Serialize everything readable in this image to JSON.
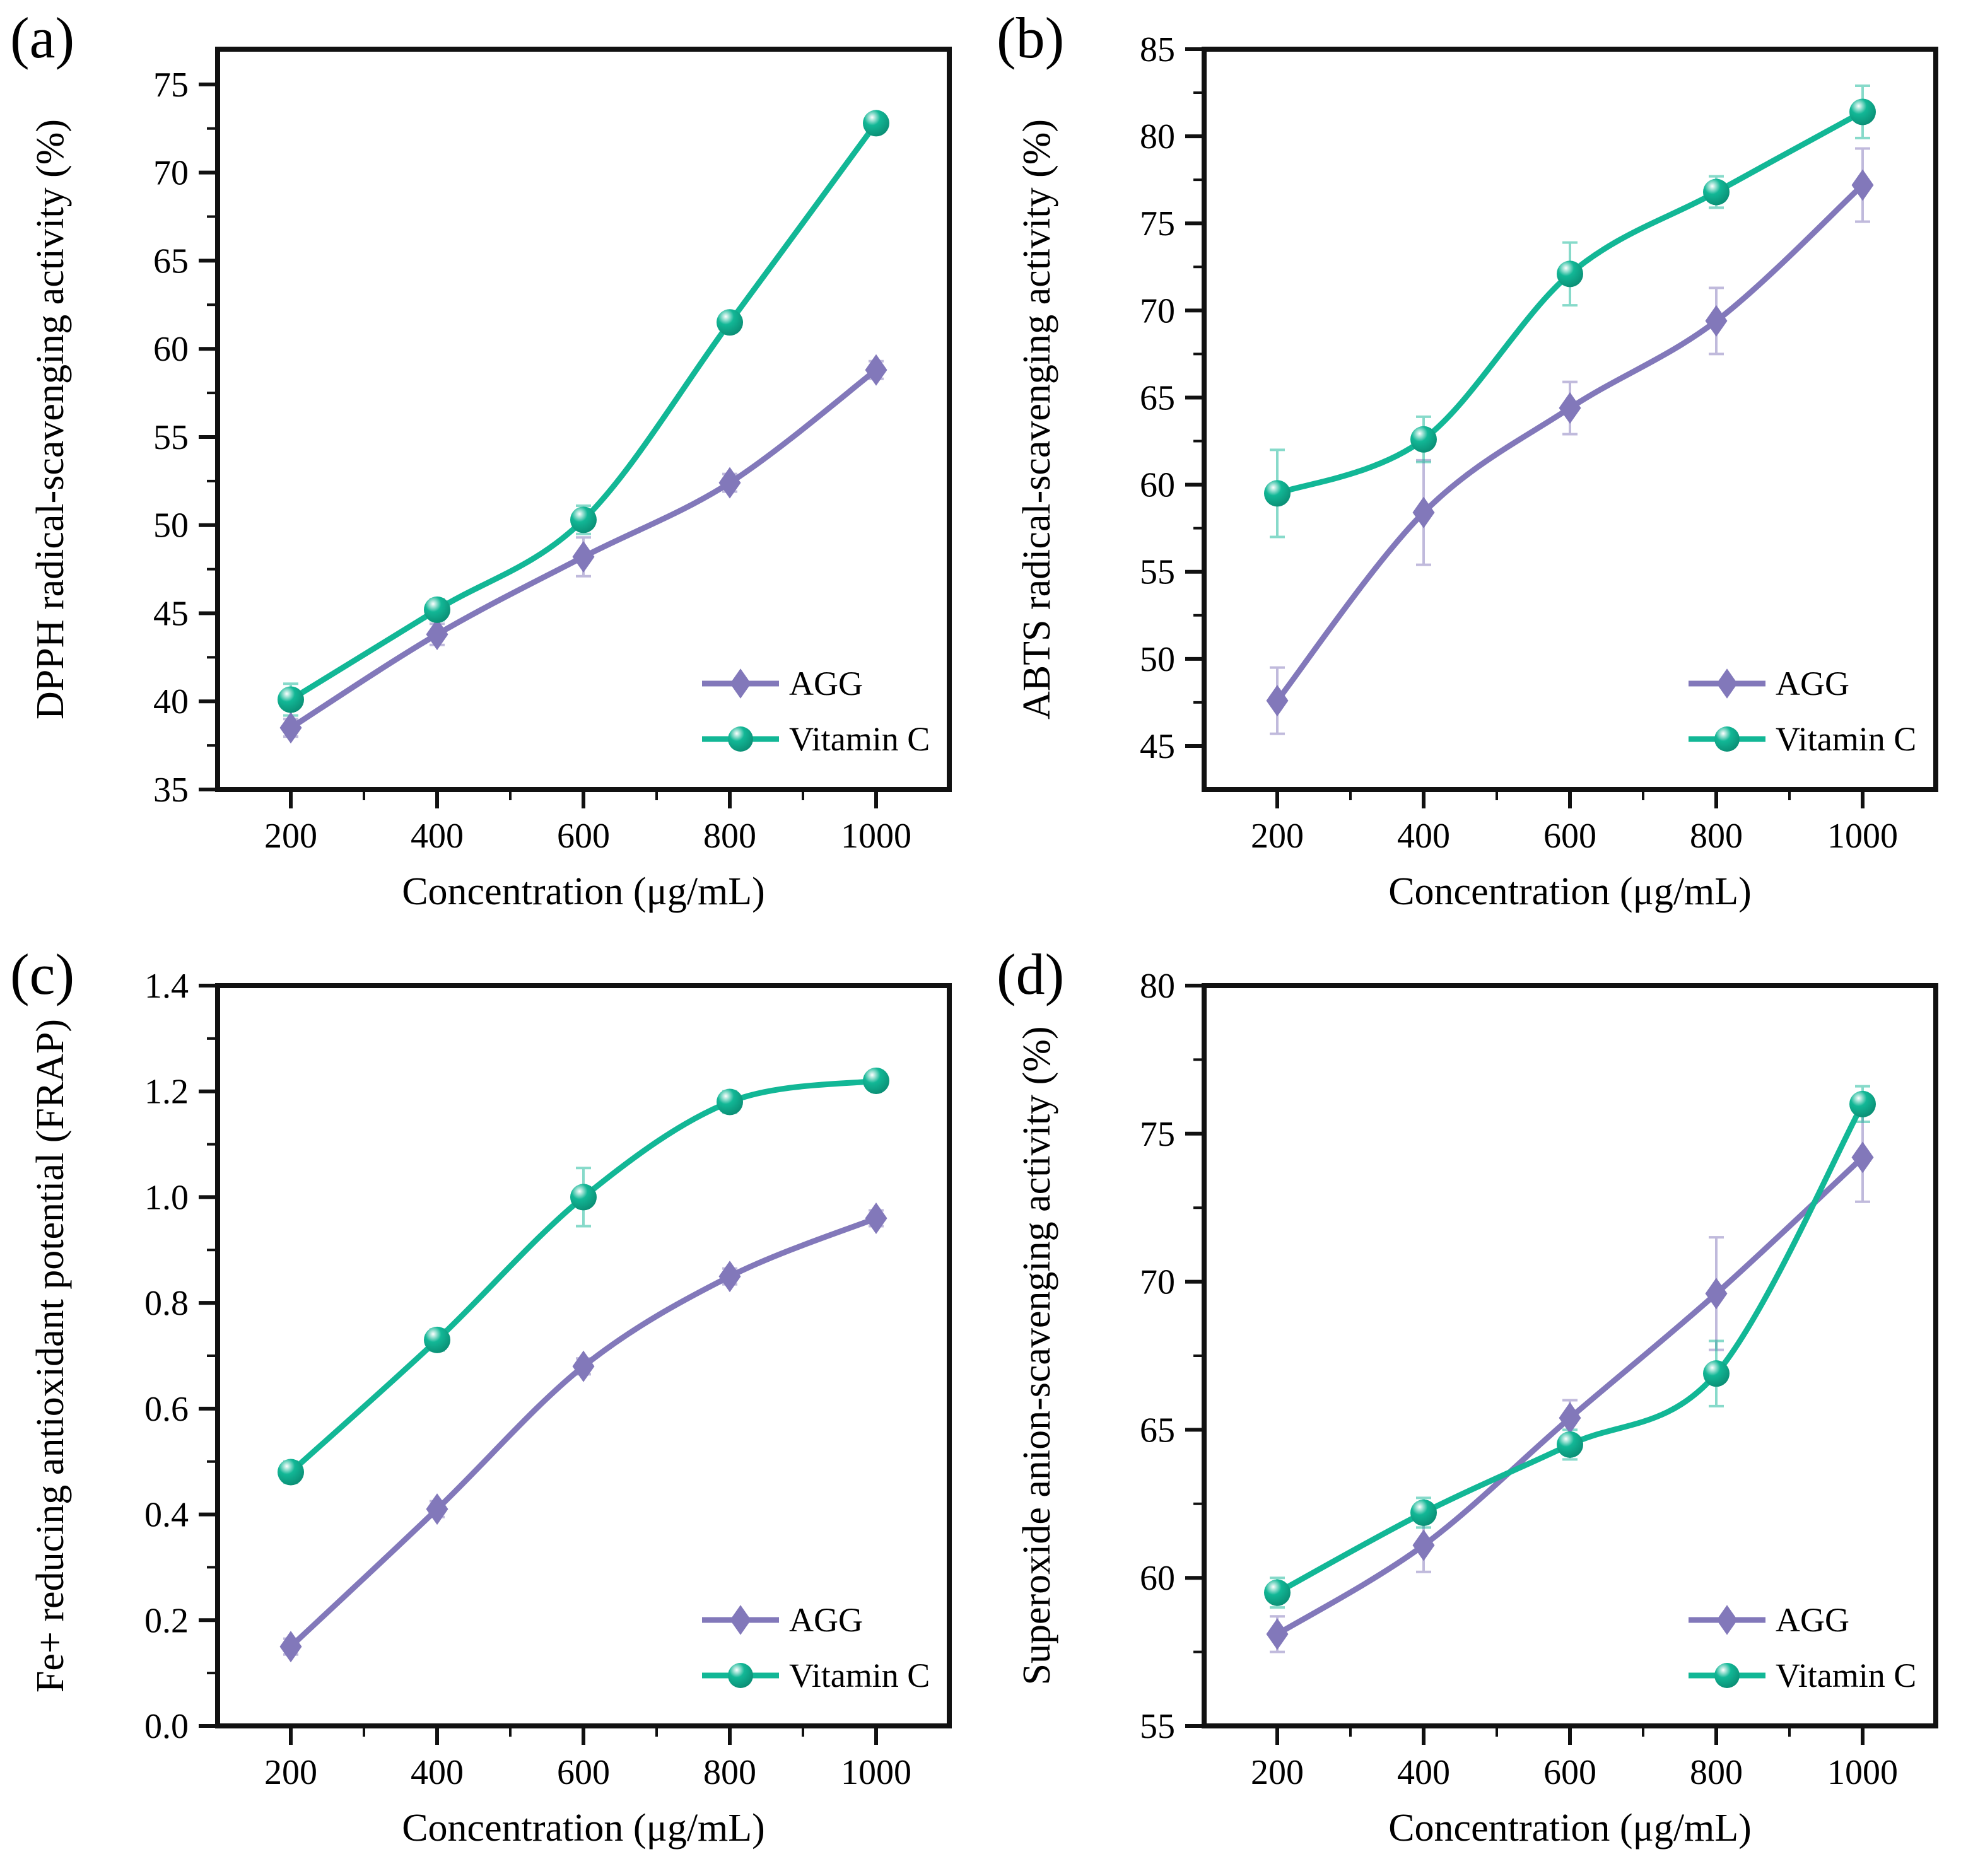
{
  "figure": {
    "background": "#ffffff",
    "axis_color": "#111111",
    "text_color": "#000000"
  },
  "legend": {
    "items": [
      "AGG",
      "Vitamin C"
    ],
    "position": "bottom-right"
  },
  "colors": {
    "agg_purple": "#8278BA",
    "vitamin_c_teal": "#12B796"
  },
  "chart_data": [
    {
      "id": "a",
      "letter": "(a)",
      "type": "line",
      "xlabel": "Concentration (μg/mL)",
      "ylabel": "DPPH radical-scavenging activity (%)",
      "x": [
        200,
        400,
        600,
        800,
        1000
      ],
      "xlim": [
        100,
        1100
      ],
      "ylim": [
        35,
        77
      ],
      "xticks": [
        200,
        400,
        600,
        800,
        1000
      ],
      "xminor": [
        300,
        500,
        700,
        900
      ],
      "yticks": [
        35,
        40,
        45,
        50,
        55,
        60,
        65,
        70,
        75
      ],
      "ylabels": [
        "35",
        "40",
        "45",
        "50",
        "55",
        "60",
        "65",
        "70",
        "75"
      ],
      "yminor": [
        37.5,
        42.5,
        47.5,
        52.5,
        57.5,
        62.5,
        67.5,
        72.5
      ],
      "grid": false,
      "legend_position": "bottom-right",
      "series": [
        {
          "name": "AGG",
          "marker": "diamond",
          "color": "#8278BA",
          "color_dark": "#675DA0",
          "values": [
            38.5,
            43.8,
            48.2,
            52.4,
            58.8
          ],
          "errors": [
            0.5,
            0.6,
            1.1,
            0.5,
            0.5
          ]
        },
        {
          "name": "Vitamin C",
          "marker": "sphere",
          "color": "#12B796",
          "color_dark": "#0A8A71",
          "values": [
            40.1,
            45.2,
            50.3,
            61.5,
            72.8
          ],
          "errors": [
            0.9,
            0.6,
            0.8,
            0.5,
            0.4
          ]
        }
      ]
    },
    {
      "id": "b",
      "letter": "(b)",
      "type": "line",
      "xlabel": "Concentration (μg/mL)",
      "ylabel": "ABTS radical-scavenging activity (%)",
      "x": [
        200,
        400,
        600,
        800,
        1000
      ],
      "xlim": [
        100,
        1100
      ],
      "ylim": [
        42.5,
        85
      ],
      "xticks": [
        200,
        400,
        600,
        800,
        1000
      ],
      "xminor": [
        300,
        500,
        700,
        900
      ],
      "yticks": [
        45,
        50,
        55,
        60,
        65,
        70,
        75,
        80,
        85
      ],
      "ylabels": [
        "45",
        "50",
        "55",
        "60",
        "65",
        "70",
        "75",
        "80",
        "85"
      ],
      "yminor": [
        47.5,
        52.5,
        57.5,
        62.5,
        67.5,
        72.5,
        77.5,
        82.5
      ],
      "grid": false,
      "legend_position": "bottom-right",
      "series": [
        {
          "name": "AGG",
          "marker": "diamond",
          "color": "#8278BA",
          "color_dark": "#675DA0",
          "values": [
            47.6,
            58.4,
            64.4,
            69.4,
            77.2
          ],
          "errors": [
            1.9,
            3.0,
            1.5,
            1.9,
            2.1
          ]
        },
        {
          "name": "Vitamin C",
          "marker": "sphere",
          "color": "#12B796",
          "color_dark": "#0A8A71",
          "values": [
            59.5,
            62.6,
            72.1,
            76.8,
            81.4
          ],
          "errors": [
            2.5,
            1.3,
            1.8,
            0.9,
            1.5
          ]
        }
      ]
    },
    {
      "id": "c",
      "letter": "(c)",
      "type": "line",
      "xlabel": "Concentration (μg/mL)",
      "ylabel": "Fe+ reducing antioxidant potential (FRAP)",
      "x": [
        200,
        400,
        600,
        800,
        1000
      ],
      "xlim": [
        100,
        1100
      ],
      "ylim": [
        0,
        1.4
      ],
      "xticks": [
        200,
        400,
        600,
        800,
        1000
      ],
      "xminor": [
        300,
        500,
        700,
        900
      ],
      "yticks": [
        0,
        0.2,
        0.4,
        0.6,
        0.8,
        1.0,
        1.2,
        1.4
      ],
      "ylabels": [
        "0.0",
        "0.2",
        "0.4",
        "0.6",
        "0.8",
        "1.0",
        "1.2",
        "1.4"
      ],
      "yminor": [
        0.1,
        0.3,
        0.5,
        0.7,
        0.9,
        1.1,
        1.3
      ],
      "grid": false,
      "legend_position": "bottom-right",
      "series": [
        {
          "name": "AGG",
          "marker": "diamond",
          "color": "#8278BA",
          "color_dark": "#675DA0",
          "values": [
            0.15,
            0.41,
            0.68,
            0.85,
            0.96
          ],
          "errors": [
            0.015,
            0.015,
            0.015,
            0.015,
            0.015
          ]
        },
        {
          "name": "Vitamin C",
          "marker": "sphere",
          "color": "#12B796",
          "color_dark": "#0A8A71",
          "values": [
            0.48,
            0.73,
            1.0,
            1.18,
            1.22
          ],
          "errors": [
            0.02,
            0.02,
            0.055,
            0.02,
            0.015
          ]
        }
      ]
    },
    {
      "id": "d",
      "letter": "(d)",
      "type": "line",
      "xlabel": "Concentration (μg/mL)",
      "ylabel": "Superoxide anion-scavenging activity (%)",
      "x": [
        200,
        400,
        600,
        800,
        1000
      ],
      "xlim": [
        100,
        1100
      ],
      "ylim": [
        55,
        80
      ],
      "xticks": [
        200,
        400,
        600,
        800,
        1000
      ],
      "xminor": [
        300,
        500,
        700,
        900
      ],
      "yticks": [
        55,
        60,
        65,
        70,
        75,
        80
      ],
      "ylabels": [
        "55",
        "60",
        "65",
        "70",
        "75",
        "80"
      ],
      "yminor": [
        57.5,
        62.5,
        67.5,
        72.5,
        77.5
      ],
      "grid": false,
      "legend_position": "bottom-right",
      "series": [
        {
          "name": "AGG",
          "marker": "diamond",
          "color": "#8278BA",
          "color_dark": "#675DA0",
          "values": [
            58.1,
            61.1,
            65.4,
            69.6,
            74.2
          ],
          "errors": [
            0.6,
            0.9,
            0.6,
            1.9,
            1.5
          ]
        },
        {
          "name": "Vitamin C",
          "marker": "sphere",
          "color": "#12B796",
          "color_dark": "#0A8A71",
          "values": [
            59.5,
            62.2,
            64.5,
            66.9,
            76.0
          ],
          "errors": [
            0.5,
            0.5,
            0.5,
            1.1,
            0.6
          ]
        }
      ]
    }
  ]
}
